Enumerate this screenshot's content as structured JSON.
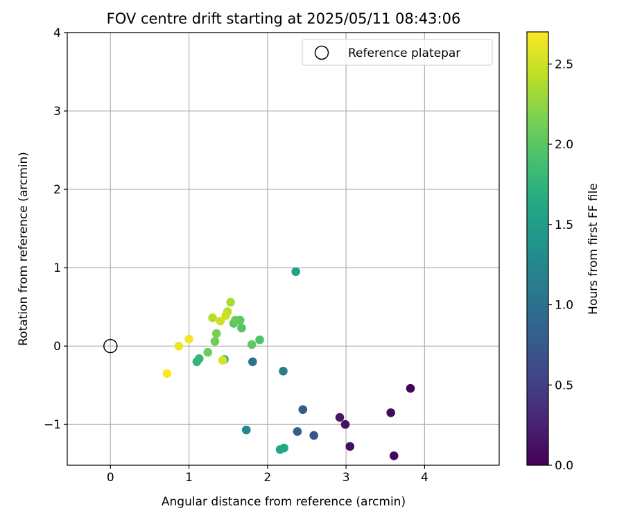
{
  "chart_data": {
    "type": "scatter",
    "title": "FOV centre drift starting at 2025/05/11 08:43:06",
    "xlabel": "Angular distance from reference (arcmin)",
    "ylabel": "Rotation from reference (arcmin)",
    "xlim": [
      -0.55,
      4.95
    ],
    "ylim": [
      -1.52,
      4.0
    ],
    "xticks": [
      0,
      1,
      2,
      3,
      4
    ],
    "xtick_labels": [
      "0",
      "1",
      "2",
      "3",
      "4"
    ],
    "yticks": [
      -1,
      0,
      1,
      2,
      3,
      4
    ],
    "ytick_labels": [
      "−1",
      "0",
      "1",
      "2",
      "3",
      "4"
    ],
    "grid": true,
    "legend": {
      "placement": "top-right",
      "entries": [
        "Reference platepar"
      ]
    },
    "reference_point": {
      "x": 0,
      "y": 0,
      "marker": "open-circle",
      "color": "#000000"
    },
    "colorbar": {
      "label": "Hours from first FF file",
      "min": 0.0,
      "max": 2.7,
      "ticks": [
        0.0,
        0.5,
        1.0,
        1.5,
        2.0,
        2.5
      ],
      "tick_labels": [
        "0.0",
        "0.5",
        "1.0",
        "1.5",
        "2.0",
        "2.5"
      ],
      "colormap": "viridis"
    },
    "points": [
      {
        "x": 3.82,
        "y": -0.54,
        "c": 0.02
      },
      {
        "x": 3.61,
        "y": -1.4,
        "c": 0.05
      },
      {
        "x": 3.57,
        "y": -0.85,
        "c": 0.08
      },
      {
        "x": 3.05,
        "y": -1.28,
        "c": 0.1
      },
      {
        "x": 2.99,
        "y": -1.0,
        "c": 0.13
      },
      {
        "x": 2.92,
        "y": -0.91,
        "c": 0.16
      },
      {
        "x": 2.59,
        "y": -1.14,
        "c": 0.7
      },
      {
        "x": 2.45,
        "y": -0.81,
        "c": 0.75
      },
      {
        "x": 2.38,
        "y": -1.09,
        "c": 0.8
      },
      {
        "x": 1.81,
        "y": -0.2,
        "c": 1.0
      },
      {
        "x": 2.2,
        "y": -0.32,
        "c": 1.15
      },
      {
        "x": 1.73,
        "y": -1.07,
        "c": 1.25
      },
      {
        "x": 2.36,
        "y": 0.95,
        "c": 1.55
      },
      {
        "x": 2.21,
        "y": -1.3,
        "c": 1.6
      },
      {
        "x": 2.16,
        "y": -1.32,
        "c": 1.62
      },
      {
        "x": 1.45,
        "y": -0.17,
        "c": 1.65
      },
      {
        "x": 1.1,
        "y": -0.2,
        "c": 1.75
      },
      {
        "x": 1.13,
        "y": -0.16,
        "c": 1.78
      },
      {
        "x": 1.9,
        "y": 0.08,
        "c": 1.95
      },
      {
        "x": 1.67,
        "y": 0.23,
        "c": 1.97
      },
      {
        "x": 1.57,
        "y": 0.29,
        "c": 2.0
      },
      {
        "x": 1.65,
        "y": 0.33,
        "c": 2.02
      },
      {
        "x": 1.59,
        "y": 0.33,
        "c": 2.05
      },
      {
        "x": 1.8,
        "y": 0.02,
        "c": 2.03
      },
      {
        "x": 1.24,
        "y": -0.08,
        "c": 2.08
      },
      {
        "x": 1.33,
        "y": 0.06,
        "c": 2.1
      },
      {
        "x": 1.35,
        "y": 0.16,
        "c": 2.15
      },
      {
        "x": 1.53,
        "y": 0.56,
        "c": 2.35
      },
      {
        "x": 1.49,
        "y": 0.44,
        "c": 2.42
      },
      {
        "x": 1.3,
        "y": 0.36,
        "c": 2.4
      },
      {
        "x": 1.47,
        "y": 0.39,
        "c": 2.48
      },
      {
        "x": 1.4,
        "y": 0.32,
        "c": 2.5
      },
      {
        "x": 1.43,
        "y": -0.18,
        "c": 2.53
      },
      {
        "x": 0.87,
        "y": 0.0,
        "c": 2.62
      },
      {
        "x": 1.0,
        "y": 0.09,
        "c": 2.66
      },
      {
        "x": 0.72,
        "y": -0.35,
        "c": 2.7
      }
    ]
  }
}
